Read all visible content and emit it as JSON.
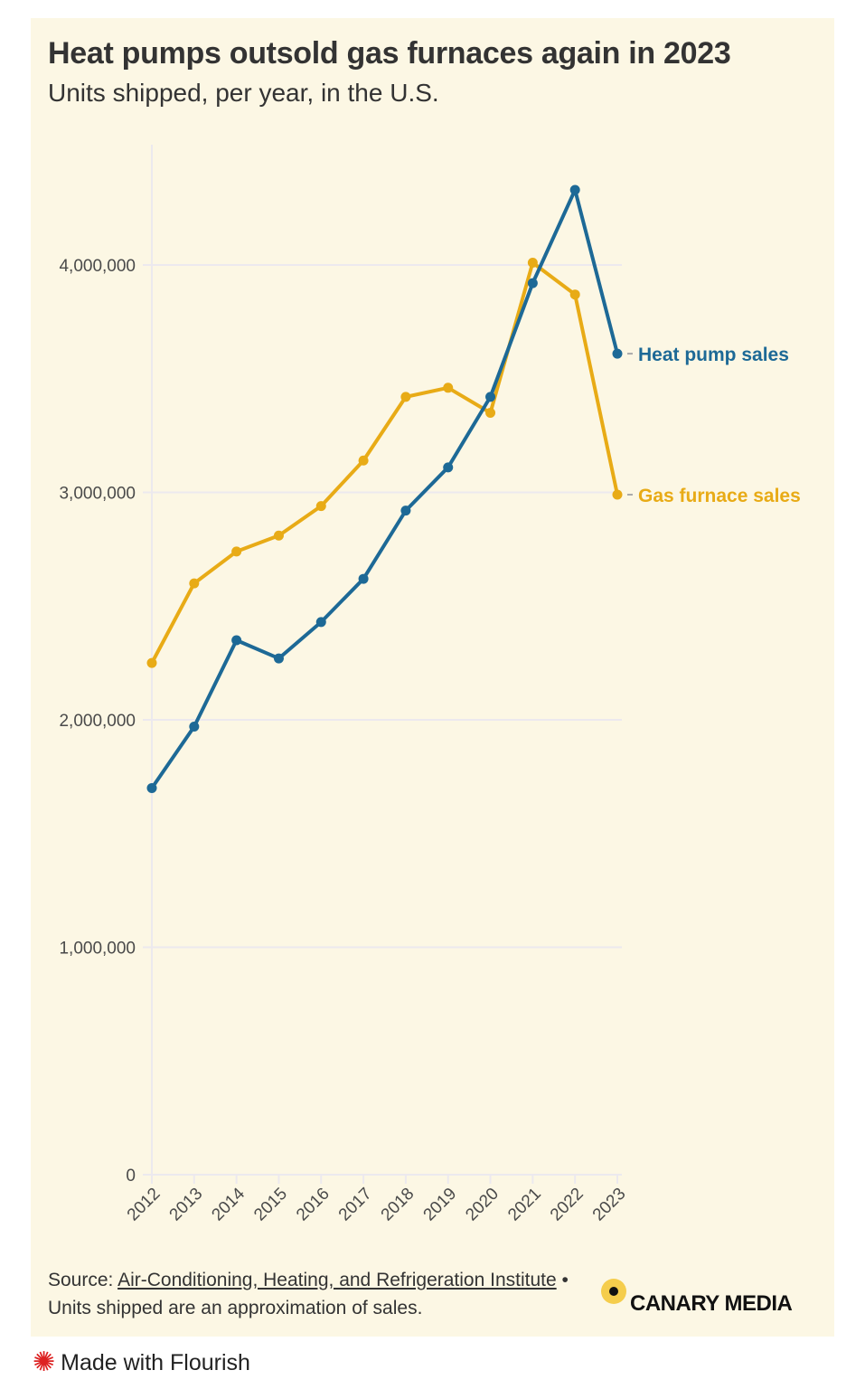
{
  "header": {
    "title": "Heat pumps outsold gas furnaces again in 2023",
    "subtitle": "Units shipped, per year, in the U.S."
  },
  "chart_data": {
    "type": "line",
    "title": "Heat pumps outsold gas furnaces again in 2023",
    "subtitle": "Units shipped, per year, in the U.S.",
    "xlabel": "",
    "ylabel": "",
    "x": [
      "2012",
      "2013",
      "2014",
      "2015",
      "2016",
      "2017",
      "2018",
      "2019",
      "2020",
      "2021",
      "2022",
      "2023"
    ],
    "ylim": [
      0,
      4400000
    ],
    "yticks": [
      0,
      1000000,
      2000000,
      3000000,
      4000000
    ],
    "ytick_labels": [
      "0",
      "1,000,000",
      "2,000,000",
      "3,000,000",
      "4,000,000"
    ],
    "grid": true,
    "legend": "direct labels at line ends (right)",
    "series": [
      {
        "name": "Heat pump sales",
        "color": "#1d6996",
        "values": [
          1700000,
          1970000,
          2350000,
          2270000,
          2430000,
          2620000,
          2920000,
          3110000,
          3420000,
          3920000,
          4330000,
          3610000
        ]
      },
      {
        "name": "Gas furnace sales",
        "color": "#e8ab16",
        "values": [
          2250000,
          2600000,
          2740000,
          2810000,
          2940000,
          3140000,
          3420000,
          3460000,
          3350000,
          4010000,
          3870000,
          2990000
        ]
      }
    ]
  },
  "footer": {
    "source_prefix": "Source: ",
    "source_link": "Air-Conditioning, Heating, and Refrigeration Institute",
    "note": " • Units shipped are an approximation of sales."
  },
  "branding": {
    "logo": "CANARY MEDIA",
    "made_with": "Made with Flourish",
    "made_with_icon": "flourish-starburst-icon"
  }
}
